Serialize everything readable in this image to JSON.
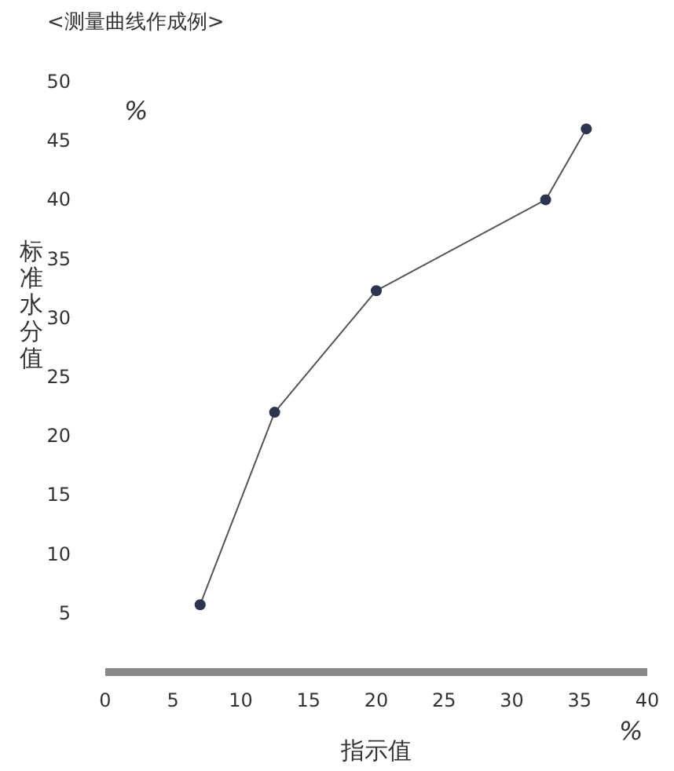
{
  "chart_data": {
    "type": "line",
    "title": "<测量曲线作成例>",
    "xlabel": "指示值",
    "ylabel": "标准水分值",
    "annotations": [
      "%",
      "%"
    ],
    "x": [
      7,
      12.5,
      20,
      32.5,
      35.5
    ],
    "series": [
      {
        "color": "#555555",
        "values": [
          5.7,
          22,
          32.3,
          40,
          46
        ]
      }
    ],
    "marker": "circle",
    "xlim": [
      0,
      40
    ],
    "xticks": [
      0,
      5,
      10,
      15,
      20,
      25,
      30,
      35,
      40
    ],
    "ylim": [
      0,
      50
    ],
    "yticks": [
      5,
      10,
      15,
      20,
      25,
      30,
      35,
      40,
      45,
      50
    ],
    "grid": false
  }
}
